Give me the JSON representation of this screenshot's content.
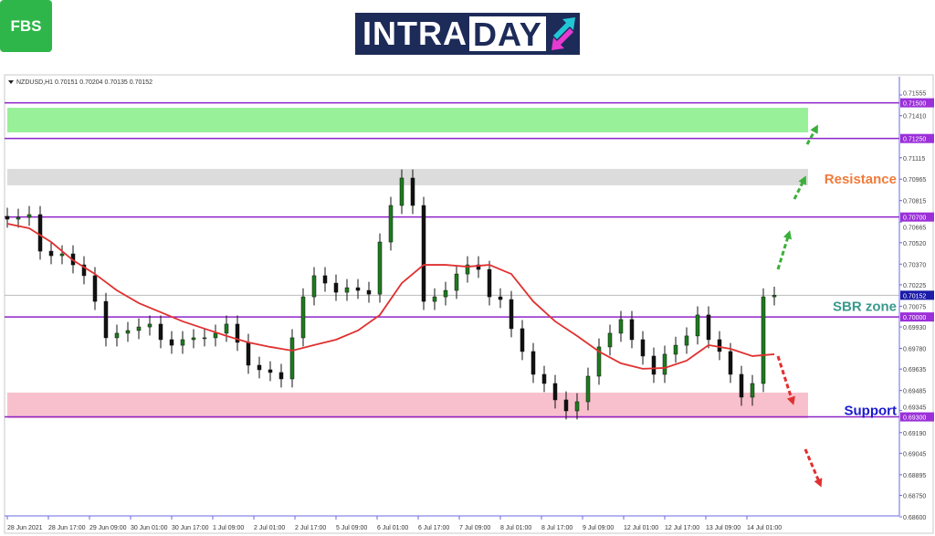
{
  "logos": {
    "brand": "FBS",
    "banner_left": "INTRA",
    "banner_right": "DAY"
  },
  "chart_data": {
    "type": "candlestick",
    "symbol_info": "NZDUSD,H1  0.70151 0.70204 0.70135 0.70152",
    "ylim": [
      0.686,
      0.71555
    ],
    "y_ticks": [
      "0.71555",
      "0.71410",
      "0.71115",
      "0.70965",
      "0.70815",
      "0.70665",
      "0.70520",
      "0.70370",
      "0.70225",
      "0.70075",
      "0.69930",
      "0.69780",
      "0.69635",
      "0.69485",
      "0.69345",
      "0.69190",
      "0.69045",
      "0.68895",
      "0.68750",
      "0.68600"
    ],
    "x_ticks": [
      "28 Jun 2021",
      "28 Jun 17:00",
      "29 Jun 09:00",
      "30 Jun 01:00",
      "30 Jun 17:00",
      "1 Jul 09:00",
      "2 Jul 01:00",
      "2 Jul 17:00",
      "5 Jul 09:00",
      "6 Jul 01:00",
      "6 Jul 17:00",
      "7 Jul 09:00",
      "8 Jul 01:00",
      "8 Jul 17:00",
      "9 Jul 09:00",
      "12 Jul 01:00",
      "12 Jul 17:00",
      "13 Jul 09:00",
      "14 Jul 01:00"
    ],
    "close": [
      0.70685,
      0.70698,
      0.70717,
      0.70461,
      0.70429,
      0.70442,
      0.70365,
      0.70289,
      0.70109,
      0.69854,
      0.69886,
      0.69905,
      0.6993,
      0.6995,
      0.69841,
      0.69802,
      0.69841,
      0.69854,
      0.69854,
      0.69886,
      0.6995,
      0.69822,
      0.69662,
      0.6963,
      0.69611,
      0.69566,
      0.69854,
      0.70141,
      0.70289,
      0.70237,
      0.70173,
      0.70205,
      0.70186,
      0.7016,
      0.70525,
      0.70781,
      0.70973,
      0.70781,
      0.70109,
      0.70141,
      0.70186,
      0.70301,
      0.70365,
      0.70333,
      0.70141,
      0.70122,
      0.69918,
      0.69758,
      0.69598,
      0.69534,
      0.69419,
      0.69342,
      0.69406,
      0.69585,
      0.6979,
      0.69886,
      0.69982,
      0.69841,
      0.69726,
      0.69598,
      0.69739,
      0.69802,
      0.69867,
      0.70014,
      0.69841,
      0.69758,
      0.69598,
      0.69438,
      0.69534,
      0.70141,
      0.70152
    ],
    "moving_average": [
      0.70653,
      0.70621,
      0.70525,
      0.70397,
      0.70301,
      0.70186,
      0.70097,
      0.70033,
      0.69969,
      0.69918,
      0.69867,
      0.69822,
      0.6979,
      0.69764,
      0.69803,
      0.69841,
      0.69905,
      0.70014,
      0.70237,
      0.70365,
      0.70365,
      0.70352,
      0.70365,
      0.70301,
      0.70109,
      0.69969,
      0.69867,
      0.69758,
      0.69675,
      0.69637,
      0.69643,
      0.69694,
      0.69803,
      0.69777,
      0.69726,
      0.69739
    ],
    "levels": [
      {
        "price": 0.715,
        "label": "0.71500"
      },
      {
        "price": 0.7125,
        "label": "0.71250"
      },
      {
        "price": 0.707,
        "label": "0.70700"
      },
      {
        "price": 0.7,
        "label": "0.70000"
      },
      {
        "price": 0.693,
        "label": "0.69300"
      }
    ],
    "current_price": {
      "price": 0.70152,
      "label": "0.70152"
    },
    "zones": [
      {
        "from": 0.71293,
        "to": 0.71465,
        "color": "#98f098"
      },
      {
        "from": 0.70922,
        "to": 0.71037,
        "color": "#dcdcdc"
      },
      {
        "from": 0.69291,
        "to": 0.6947,
        "color": "#f8c0cc"
      }
    ],
    "annotations": [
      {
        "text": "Resistance",
        "price": 0.70965,
        "color": "#f07b3a"
      },
      {
        "text": "SBR zone",
        "price": 0.70075,
        "color": "#3a9a8c"
      },
      {
        "text": "Support",
        "price": 0.69345,
        "color": "#1a1acc"
      }
    ],
    "colors": {
      "level": "#8e24c8",
      "ma": "#e03030",
      "candle_up": "#1e7b1e",
      "candle_down": "#111111",
      "axis": "#6a6ae0",
      "current": "#1c1ca8"
    }
  }
}
